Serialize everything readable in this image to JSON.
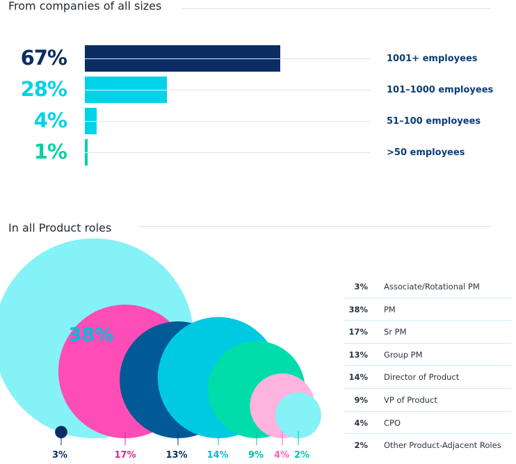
{
  "sections": {
    "sizes_title": "From companies of all sizes",
    "roles_title": "In all Product roles"
  },
  "chart_data": [
    {
      "type": "bar",
      "orientation": "horizontal",
      "title": "From companies of all sizes",
      "categories": [
        "1001+ employees",
        "101–1000 employees",
        "51–100 employees",
        ">50 employees"
      ],
      "values": [
        67,
        28,
        4,
        1
      ],
      "value_labels": [
        "67%",
        "28%",
        "4%",
        "1%"
      ],
      "xlim": [
        0,
        100
      ],
      "colors": [
        "#0b2d63",
        "#00d2e9",
        "#00d2e9",
        "#00d1a2"
      ]
    },
    {
      "type": "bubble",
      "title": "In all Product roles",
      "categories": [
        "Associate/Rotational PM",
        "PM",
        "Sr PM",
        "Group PM",
        "Director of Product",
        "VP of Product",
        "CPO",
        "Other Product-Adjacent Roles"
      ],
      "values": [
        3,
        38,
        17,
        13,
        14,
        9,
        4,
        2
      ],
      "value_labels": [
        "3%",
        "38%",
        "17%",
        "13%",
        "14%",
        "9%",
        "4%",
        "2%"
      ],
      "colors": [
        "#0b2d63",
        "#84f2f7",
        "#ff4db8",
        "#005a96",
        "#00c9e2",
        "#00dcaa",
        "#ffb3de",
        "#84f2f7"
      ],
      "label_colors": [
        "#0b2d63",
        "#00bcd8",
        "#e0248b",
        "#0b2d63",
        "#00bcd8",
        "#00bfa0",
        "#ff5fc0",
        "#00c9a8"
      ],
      "legend_position": "right"
    }
  ]
}
